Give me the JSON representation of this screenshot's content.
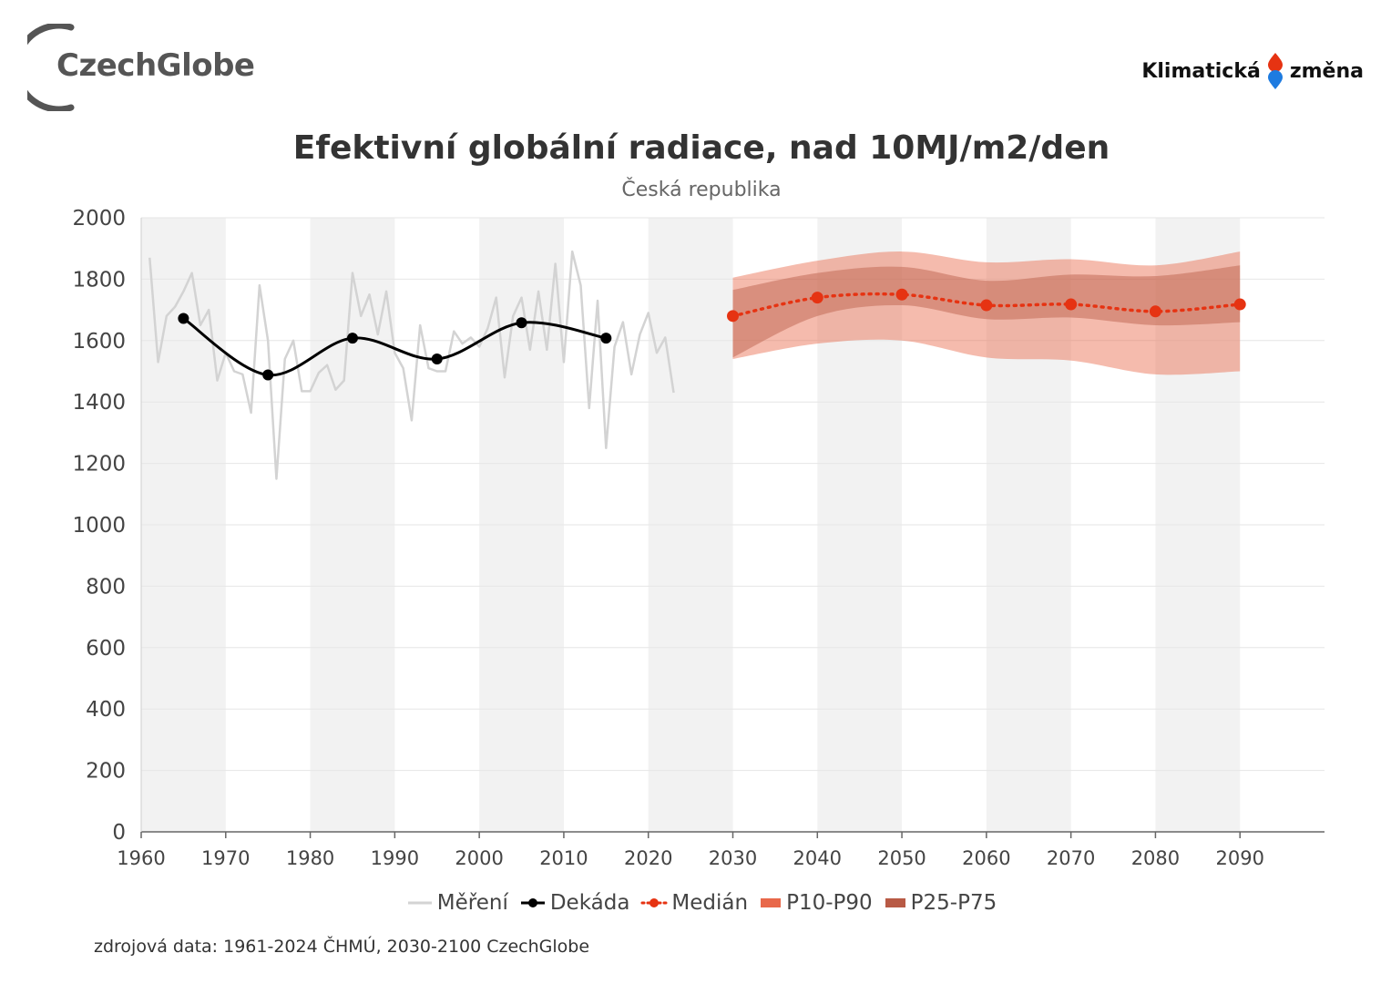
{
  "header": {
    "logo_left": "CzechGlobe",
    "logo_right_word1": "Klimatická",
    "logo_right_word2": "změna"
  },
  "colors": {
    "measured": "#d3d3d3",
    "decade": "#000000",
    "median": "#e63312",
    "p10_p90": "#e8684a",
    "p25_p75": "#b85a45",
    "stripe": "#f2f2f2"
  },
  "chart_data": {
    "type": "line",
    "title": "Efektivní globální radiace, nad 10MJ/m2/den",
    "subtitle": "Česká republika",
    "xlim": [
      1960,
      2100
    ],
    "ylim": [
      0,
      2000
    ],
    "x_ticks": [
      1960,
      1970,
      1980,
      1990,
      2000,
      2010,
      2020,
      2030,
      2040,
      2050,
      2060,
      2070,
      2080,
      2090
    ],
    "y_ticks": [
      0,
      200,
      400,
      600,
      800,
      1000,
      1200,
      1400,
      1600,
      1800,
      2000
    ],
    "grid": "horizontal",
    "background_stripes": "alternating decades",
    "series": [
      {
        "name": "Měření",
        "kind": "line",
        "x": [
          1961,
          1962,
          1963,
          1964,
          1965,
          1966,
          1967,
          1968,
          1969,
          1970,
          1971,
          1972,
          1973,
          1974,
          1975,
          1976,
          1977,
          1978,
          1979,
          1980,
          1981,
          1982,
          1983,
          1984,
          1985,
          1986,
          1987,
          1988,
          1989,
          1990,
          1991,
          1992,
          1993,
          1994,
          1995,
          1996,
          1997,
          1998,
          1999,
          2000,
          2001,
          2002,
          2003,
          2004,
          2005,
          2006,
          2007,
          2008,
          2009,
          2010,
          2011,
          2012,
          2013,
          2014,
          2015,
          2016,
          2017,
          2018,
          2019,
          2020,
          2021,
          2022,
          2023
        ],
        "y": [
          1870,
          1530,
          1680,
          1710,
          1760,
          1820,
          1650,
          1700,
          1470,
          1560,
          1500,
          1490,
          1365,
          1780,
          1600,
          1150,
          1540,
          1600,
          1435,
          1435,
          1495,
          1520,
          1440,
          1470,
          1820,
          1680,
          1750,
          1620,
          1760,
          1560,
          1510,
          1340,
          1650,
          1510,
          1500,
          1500,
          1630,
          1590,
          1610,
          1580,
          1640,
          1740,
          1480,
          1680,
          1740,
          1570,
          1760,
          1570,
          1850,
          1530,
          1890,
          1780,
          1380,
          1730,
          1250,
          1580,
          1660,
          1490,
          1620,
          1690,
          1560,
          1610,
          1430
        ]
      },
      {
        "name": "Dekáda",
        "kind": "smooth-line-markers",
        "x": [
          1965,
          1975,
          1985,
          1995,
          2005,
          2015
        ],
        "y": [
          1672,
          1488,
          1608,
          1540,
          1658,
          1608
        ]
      },
      {
        "name": "Medián",
        "kind": "dotted-line-markers",
        "x": [
          2030,
          2040,
          2050,
          2060,
          2070,
          2080,
          2090
        ],
        "y": [
          1680,
          1740,
          1750,
          1715,
          1718,
          1695,
          1718
        ]
      },
      {
        "name": "P10-P90",
        "kind": "band",
        "x": [
          2030,
          2040,
          2050,
          2060,
          2070,
          2080,
          2090
        ],
        "low": [
          1540,
          1590,
          1600,
          1545,
          1535,
          1490,
          1500
        ],
        "high": [
          1805,
          1860,
          1890,
          1855,
          1865,
          1845,
          1890
        ]
      },
      {
        "name": "P25-P75",
        "kind": "band",
        "x": [
          2030,
          2040,
          2050,
          2060,
          2070,
          2080,
          2090
        ],
        "low": [
          1545,
          1680,
          1715,
          1670,
          1675,
          1650,
          1660
        ],
        "high": [
          1765,
          1820,
          1840,
          1795,
          1815,
          1810,
          1845
        ]
      }
    ],
    "legend": [
      "Měření",
      "Dekáda",
      "Medián",
      "P10-P90",
      "P25-P75"
    ],
    "legend_position": "bottom-center",
    "source": "zdrojová data: 1961-2024 ČHMÚ, 2030-2100 CzechGlobe"
  }
}
